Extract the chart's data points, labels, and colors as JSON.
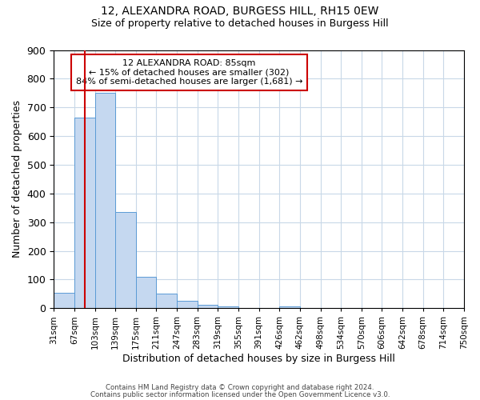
{
  "title": "12, ALEXANDRA ROAD, BURGESS HILL, RH15 0EW",
  "subtitle": "Size of property relative to detached houses in Burgess Hill",
  "xlabel": "Distribution of detached houses by size in Burgess Hill",
  "ylabel": "Number of detached properties",
  "bar_color": "#c5d8f0",
  "bar_edge_color": "#5b9bd5",
  "background_color": "#ffffff",
  "grid_color": "#c8d8e8",
  "bin_labels": [
    "31sqm",
    "67sqm",
    "103sqm",
    "139sqm",
    "175sqm",
    "211sqm",
    "247sqm",
    "283sqm",
    "319sqm",
    "355sqm",
    "391sqm",
    "426sqm",
    "462sqm",
    "498sqm",
    "534sqm",
    "570sqm",
    "606sqm",
    "642sqm",
    "678sqm",
    "714sqm",
    "750sqm"
  ],
  "bar_heights": [
    55,
    665,
    750,
    335,
    110,
    50,
    25,
    12,
    5,
    0,
    0,
    5,
    0,
    0,
    0,
    0,
    0,
    0,
    0,
    0
  ],
  "ylim": [
    0,
    900
  ],
  "yticks": [
    0,
    100,
    200,
    300,
    400,
    500,
    600,
    700,
    800,
    900
  ],
  "property_sqm": 85,
  "bin_edges_sqm": [
    31,
    67,
    103,
    139,
    175,
    211,
    247,
    283,
    319,
    355,
    391,
    426,
    462,
    498,
    534,
    570,
    606,
    642,
    678,
    714,
    750
  ],
  "annotation_title": "12 ALEXANDRA ROAD: 85sqm",
  "annotation_line1": "← 15% of detached houses are smaller (302)",
  "annotation_line2": "84% of semi-detached houses are larger (1,681) →",
  "annotation_box_color": "#ffffff",
  "annotation_box_edge": "#cc0000",
  "vline_color": "#cc0000",
  "footer1": "Contains HM Land Registry data © Crown copyright and database right 2024.",
  "footer2": "Contains public sector information licensed under the Open Government Licence v3.0."
}
